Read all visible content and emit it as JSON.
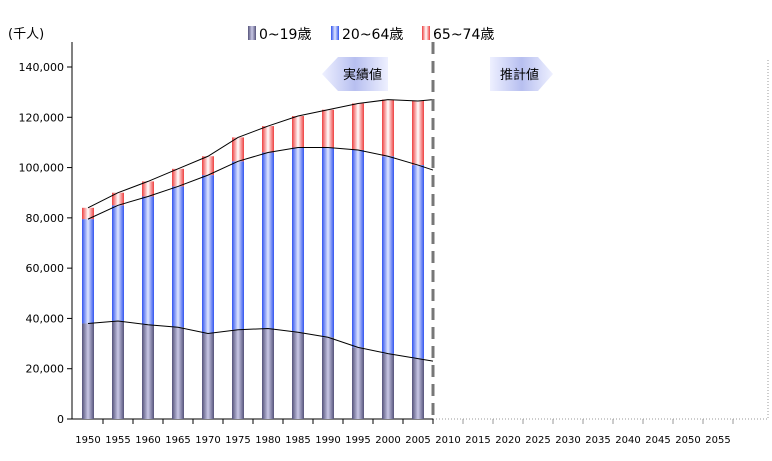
{
  "chart_data": {
    "type": "bar",
    "stacked": true,
    "unit_label": "(千人)",
    "xlabel": "",
    "ylabel": "",
    "ylim": [
      0,
      140000
    ],
    "y_ticks": [
      "0",
      "20,000",
      "40,000",
      "60,000",
      "80,000",
      "100,000",
      "120,000",
      "140,000"
    ],
    "y_tick_values": [
      0,
      20000,
      40000,
      60000,
      80000,
      100000,
      120000,
      140000
    ],
    "categories": [
      "1950",
      "1955",
      "1960",
      "1965",
      "1970",
      "1975",
      "1980",
      "1985",
      "1990",
      "1995",
      "2000",
      "2005",
      "2010",
      "2015",
      "2020",
      "2025",
      "2030",
      "2035",
      "2040",
      "2045",
      "2050",
      "2055"
    ],
    "series": [
      {
        "name": "0~19歳",
        "color": "#6f6d9c",
        "values": [
          38000,
          39000,
          37500,
          36500,
          34000,
          35500,
          36000,
          34500,
          32500,
          28500,
          26000,
          24000,
          null,
          null,
          null,
          null,
          null,
          null,
          null,
          null,
          null,
          null
        ]
      },
      {
        "name": "20~64歳",
        "color": "#4f6ef5",
        "values": [
          41500,
          46000,
          51000,
          56000,
          63000,
          67000,
          70000,
          73500,
          75500,
          78500,
          78500,
          77000,
          null,
          null,
          null,
          null,
          null,
          null,
          null,
          null,
          null,
          null
        ]
      },
      {
        "name": "65~74歳",
        "color": "#f05a5a",
        "values": [
          4500,
          5000,
          6000,
          7000,
          7500,
          9500,
          10500,
          12500,
          15000,
          18500,
          22500,
          25500,
          null,
          null,
          null,
          null,
          null,
          null,
          null,
          null,
          null,
          null
        ]
      }
    ],
    "outline_series": [
      [
        38000,
        39000,
        37500,
        36500,
        34000,
        35500,
        36000,
        34500,
        32500,
        28500,
        26000,
        24000,
        23000
      ],
      [
        79500,
        85000,
        88500,
        92500,
        97000,
        102500,
        106000,
        108000,
        108000,
        107000,
        104500,
        101000,
        99000
      ],
      [
        84000,
        90000,
        94500,
        99500,
        104500,
        112000,
        116500,
        120500,
        123000,
        125500,
        127000,
        126500,
        127000
      ]
    ],
    "legend_position": "top",
    "grid": false,
    "divider_after": "2005",
    "annotations": {
      "actual": "実績値",
      "projected": "推計値"
    }
  }
}
